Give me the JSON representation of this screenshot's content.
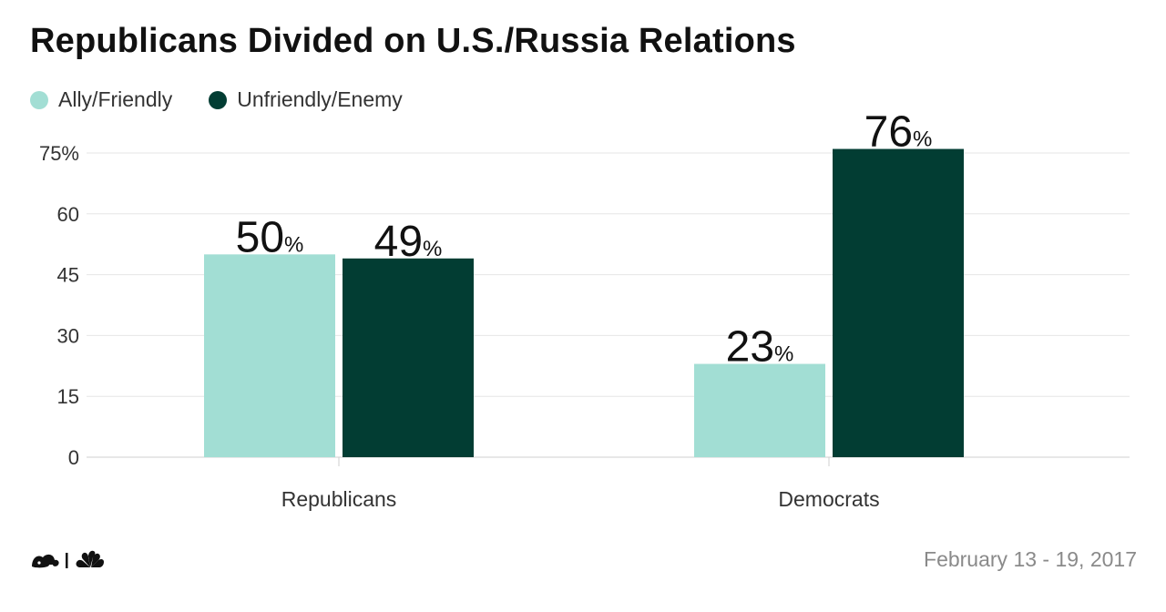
{
  "title": "Republicans Divided on U.S./Russia Relations",
  "legend": [
    {
      "label": "Ally/Friendly",
      "color": "#a2ded4"
    },
    {
      "label": "Unfriendly/Enemy",
      "color": "#023d33"
    }
  ],
  "chart_data": {
    "type": "bar",
    "title": "Republicans Divided on U.S./Russia Relations",
    "categories": [
      "Republicans",
      "Democrats"
    ],
    "series": [
      {
        "name": "Ally/Friendly",
        "values": [
          50,
          23
        ],
        "color": "#a2ded4"
      },
      {
        "name": "Unfriendly/Enemy",
        "values": [
          49,
          76
        ],
        "color": "#023d33"
      }
    ],
    "value_suffix": "%",
    "y_ticks": [
      0,
      15,
      30,
      45,
      60,
      75
    ],
    "y_tick_labels": [
      "0",
      "15",
      "30",
      "45",
      "60",
      "75%"
    ],
    "ylim": [
      0,
      75
    ],
    "xlabel": "",
    "ylabel": "",
    "grid": true,
    "legend_position": "top-left"
  },
  "footer": {
    "date": "February 13 - 19, 2017",
    "logo_icon": "nbc-surveymonkey-logo-icon"
  }
}
